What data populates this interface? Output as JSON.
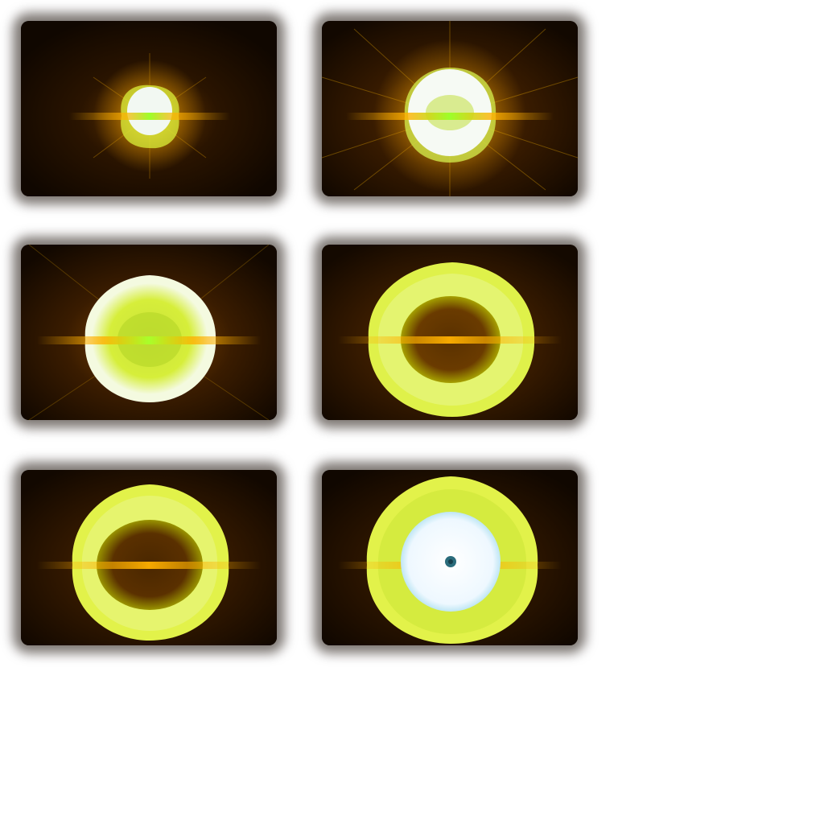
{
  "grid": {
    "columns": 2,
    "rows": 3
  },
  "frames": [
    {
      "stage": 1,
      "description_key": "small-bright-core",
      "colors": {
        "core": "#f2f8f2",
        "shell": "#d9ef3a",
        "glow": "#f0a000",
        "band": "#9cff2a"
      }
    },
    {
      "stage": 2,
      "description_key": "expanding-white-core-with-rays",
      "colors": {
        "core": "#f6faf4",
        "shell": "#cfe64a",
        "glow": "#f0a000",
        "band": "#9cff2a"
      }
    },
    {
      "stage": 3,
      "description_key": "large-yellow-green-shell",
      "colors": {
        "core": "#e8f6b0",
        "shell": "#d6ee3a",
        "glow": "#e99700",
        "band": "#a8ff2a"
      }
    },
    {
      "stage": 4,
      "description_key": "ring-with-dark-interior",
      "colors": {
        "core": "#5a3100",
        "shell": "#dff14a",
        "glow": "#e08e00",
        "band": "#ffb000"
      }
    },
    {
      "stage": 5,
      "description_key": "thin-ragged-ring",
      "colors": {
        "core": "#4a2700",
        "shell": "#e2f24a",
        "glow": "#e08e00",
        "band": "#ffb000"
      }
    },
    {
      "stage": 6,
      "description_key": "ring-with-bright-white-disc",
      "colors": {
        "core": "#f4fbff",
        "shell": "#e2f24a",
        "glow": "#d98a00",
        "band": "#ffb000",
        "dot": "#2a6c7c"
      }
    }
  ]
}
